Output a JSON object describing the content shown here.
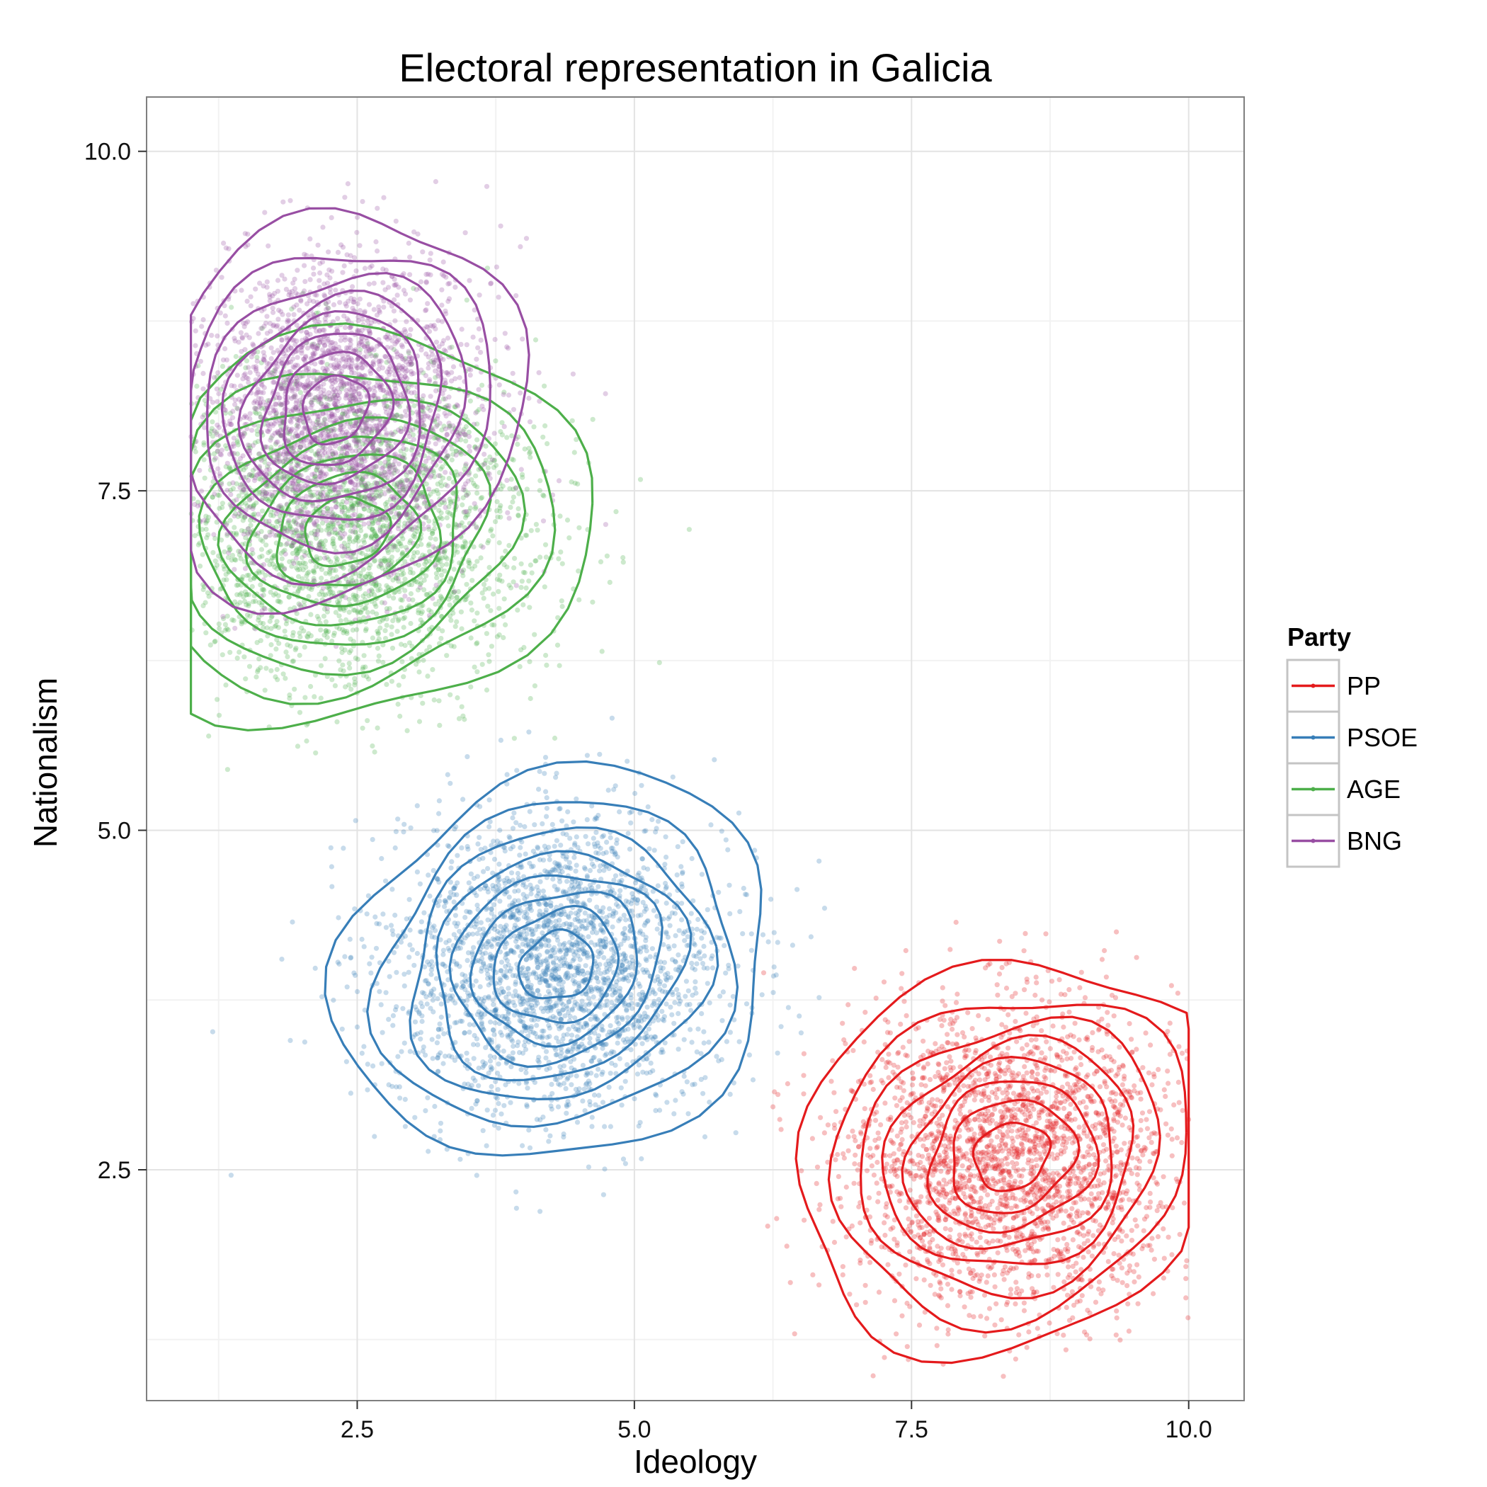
{
  "chart_data": {
    "type": "scatter",
    "title": "Electoral representation in Galicia",
    "xlabel": "Ideology",
    "ylabel": "Nationalism",
    "xlim": [
      0.6,
      10.5
    ],
    "ylim": [
      0.8,
      10.4
    ],
    "x_ticks": [
      2.5,
      5.0,
      7.5,
      10.0
    ],
    "x_tick_labels": [
      "2.5",
      "5.0",
      "7.5",
      "10.0"
    ],
    "y_ticks": [
      2.5,
      5.0,
      7.5,
      10.0
    ],
    "y_tick_labels": [
      "2.5",
      "5.0",
      "7.5",
      "10.0"
    ],
    "grid": true,
    "legend": {
      "title": "Party",
      "position": "right"
    },
    "series": [
      {
        "name": "PP",
        "color": "#E41A1C",
        "center": [
          8.4,
          2.6
        ],
        "sd": [
          0.75,
          0.55
        ]
      },
      {
        "name": "PSOE",
        "color": "#377EB8",
        "center": [
          4.3,
          4.0
        ],
        "sd": [
          0.75,
          0.55
        ]
      },
      {
        "name": "AGE",
        "color": "#4DAF4A",
        "center": [
          2.4,
          7.2
        ],
        "sd": [
          0.85,
          0.55
        ]
      },
      {
        "name": "BNG",
        "color": "#984EA3",
        "center": [
          2.3,
          8.1
        ],
        "sd": [
          0.65,
          0.55
        ]
      }
    ]
  }
}
